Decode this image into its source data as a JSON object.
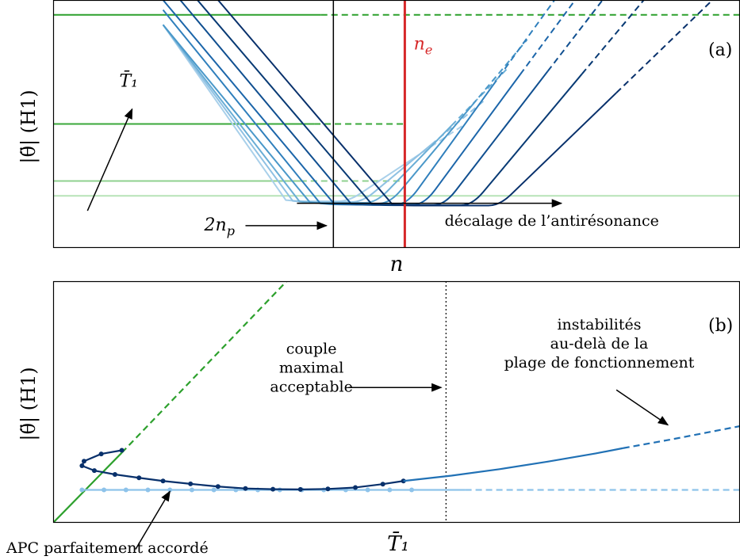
{
  "chart_data": [
    {
      "panel": "a",
      "type": "line",
      "panel_label": "(a)",
      "ylabel": "|θ̈| (H1)",
      "xlabel": "n",
      "grid": false,
      "axes_ticks": false,
      "x_range": [
        0,
        100
      ],
      "y_range": [
        0,
        100
      ],
      "colors": {
        "green_dark": "#2ca02c",
        "green_mid": "#4db34d",
        "green_light": "#8fd18f",
        "green_pale": "#b7e3b7",
        "red": "#d62728",
        "black": "#000000"
      },
      "vertical_lines": [
        {
          "name": "2n_p",
          "x": 40.8,
          "color": "#000000"
        },
        {
          "name": "n_e",
          "x": 51.2,
          "color": "#d62728"
        }
      ],
      "horizontal_lines": [
        {
          "y": 94,
          "x_solid_end": 39.0,
          "x_dashed_end": 100,
          "color": "#2ca02c"
        },
        {
          "y": 50,
          "x_solid_end": 38.0,
          "x_dashed_end": 51.0,
          "color": "#3aa83a"
        },
        {
          "y": 27,
          "x_solid_end": 36.0,
          "x_dashed_end": 51.0,
          "color": "#8fd18f"
        },
        {
          "y": 21,
          "x_solid_end": 100,
          "x_dashed_end": 100,
          "color": "#b7e3b7"
        }
      ],
      "v_curves": [
        {
          "x_start": 16.0,
          "y_start": 90,
          "x_min_start": 35.5,
          "x_min_end": 43.0,
          "y_min": 18.8,
          "x_solid_end": 52.5,
          "x_dashed_end": 60.0,
          "y_end": 50,
          "color": "#a9d0ea"
        },
        {
          "x_start": 16.0,
          "y_start": 90,
          "x_min_start": 36.5,
          "x_min_end": 45.0,
          "y_min": 18.5,
          "x_solid_end": 55.0,
          "x_dashed_end": 63.0,
          "y_end": 60,
          "color": "#8fc1e3"
        },
        {
          "x_start": 16.0,
          "y_start": 90,
          "x_min_start": 37.5,
          "x_min_end": 47.0,
          "y_min": 18.2,
          "x_solid_end": 58.0,
          "x_dashed_end": 66.0,
          "y_end": 72,
          "color": "#6aaed6"
        },
        {
          "x_start": 16.0,
          "y_start": 90,
          "x_min_start": 39.0,
          "x_min_end": 49.0,
          "y_min": 17.9,
          "x_solid_end": 61.0,
          "x_dashed_end": 69.0,
          "y_end": 84,
          "color": "#4a98c9"
        },
        {
          "x_start": 16.0,
          "y_start": 96,
          "x_min_start": 40.5,
          "x_min_end": 51.5,
          "y_min": 17.5,
          "x_solid_end": 64.0,
          "x_dashed_end": 73.0,
          "y_end": 100,
          "color": "#2f7fbc"
        },
        {
          "x_start": 16.0,
          "y_start": 100,
          "x_min_start": 42.5,
          "x_min_end": 54.0,
          "y_min": 17.4,
          "x_solid_end": 68.0,
          "x_dashed_end": 76.0,
          "y_end": 100,
          "color": "#1c66aa"
        },
        {
          "x_start": 18.5,
          "y_start": 100,
          "x_min_start": 45.0,
          "x_min_end": 57.0,
          "y_min": 17.3,
          "x_solid_end": 72.0,
          "x_dashed_end": 80.0,
          "y_end": 100,
          "color": "#104f90"
        },
        {
          "x_start": 21.0,
          "y_start": 100,
          "x_min_start": 48.0,
          "x_min_end": 61.0,
          "y_min": 17.2,
          "x_solid_end": 77.0,
          "x_dashed_end": 86.0,
          "y_end": 100,
          "color": "#083a74"
        },
        {
          "x_start": 24.0,
          "y_start": 100,
          "x_min_start": 51.0,
          "x_min_end": 65.0,
          "y_min": 17.1,
          "x_solid_end": 82.0,
          "x_dashed_end": 96.0,
          "y_end": 100,
          "color": "#08306b"
        }
      ],
      "annotations": [
        {
          "id": "T1",
          "text": "T̄₁",
          "label_x": 11.0,
          "label_y": 65,
          "arrow_from_x": 5.0,
          "arrow_from_y": 15,
          "arrow_to_x": 11.5,
          "arrow_to_y": 56
        },
        {
          "id": "2np",
          "text": "2n_p",
          "label_x": 22.0,
          "label_y": 7,
          "arrow_from_x": 28.0,
          "arrow_from_y": 9,
          "arrow_to_x": 39.8,
          "arrow_to_y": 9
        },
        {
          "id": "ne",
          "text": "n_e",
          "label_x": 52.5,
          "label_y": 80
        },
        {
          "id": "shift",
          "text": "décalage de l’antirésonance",
          "label_x": 57.0,
          "label_y": 9,
          "arrow_from_x": 35.5,
          "arrow_from_y": 18,
          "arrow_to_x": 74.0,
          "arrow_to_y": 18
        }
      ]
    },
    {
      "panel": "b",
      "type": "line",
      "panel_label": "(b)",
      "ylabel": "|θ̈| (H1)",
      "xlabel": "T̄₁",
      "grid": false,
      "axes_ticks": false,
      "x_range": [
        0,
        100
      ],
      "y_range": [
        0,
        100
      ],
      "vertical_lines": [
        {
          "name": "max_torque",
          "x": 57.2,
          "style": "dotted",
          "color": "#000000"
        }
      ],
      "series": [
        {
          "name": "",
          "color": "#2ca02c",
          "solid": {
            "x": [
              0,
              10.0
            ],
            "y": [
              0,
              29
            ]
          },
          "dashed": {
            "x": [
              10.0,
              34.0
            ],
            "y": [
              29,
              100
            ]
          }
        },
        {
          "name": "",
          "color": "#8ec3ea",
          "solid": {
            "x": [
              4.2,
              60.0
            ],
            "y": [
              13.6,
              13.6
            ]
          },
          "dashed": {
            "x": [
              60.0,
              100
            ],
            "y": [
              13.6,
              13.6
            ]
          },
          "markers": {
            "x": [
              4.2,
              7.4,
              10.6,
              13.8,
              17.0,
              20.2,
              23.4,
              26.6,
              29.8,
              33.0,
              36.2,
              39.4,
              42.6,
              45.8,
              49.0,
              52.2
            ],
            "y": [
              13.6,
              13.6,
              13.6,
              13.6,
              13.6,
              13.6,
              13.6,
              13.6,
              13.6,
              13.6,
              13.6,
              13.6,
              13.6,
              13.6,
              13.6,
              13.6
            ]
          }
        },
        {
          "name": "",
          "color": "#08306b",
          "solid": {
            "x": [
              10.0,
              7.0,
              4.5,
              4.2,
              6.0,
              9.0,
              12.5,
              16.0,
              20.0,
              24.0,
              28.0,
              32.0,
              36.0,
              40.0,
              44.0,
              48.0,
              51.0
            ],
            "y": [
              30.0,
              28.5,
              25.5,
              23.6,
              21.6,
              20.0,
              18.6,
              17.3,
              16.1,
              15.0,
              14.2,
              13.9,
              13.8,
              14.0,
              14.6,
              16.0,
              17.3
            ]
          },
          "markers": {
            "x": [
              10.0,
              7.0,
              4.5,
              4.2,
              6.0,
              9.0,
              12.5,
              16.0,
              20.0,
              24.0,
              28.0,
              32.0,
              36.0,
              40.0,
              44.0,
              48.0,
              51.0
            ],
            "y": [
              30.0,
              28.5,
              25.5,
              23.6,
              21.6,
              20.0,
              18.6,
              17.3,
              16.1,
              15.0,
              14.2,
              13.9,
              13.8,
              14.0,
              14.6,
              16.0,
              17.3
            ]
          }
        },
        {
          "name": "",
          "color": "#2171b5",
          "solid": {
            "x": [
              51.0,
              58.0,
              65.0,
              72.0,
              79.0,
              83.0
            ],
            "y": [
              17.3,
              19.5,
              22.2,
              25.3,
              28.7,
              30.9
            ]
          },
          "dashed": {
            "x": [
              83.0,
              90.0,
              100
            ],
            "y": [
              30.9,
              34.5,
              40.0
            ]
          }
        }
      ],
      "annotations": [
        {
          "id": "couple",
          "lines": [
            "couple",
            "maximal",
            "acceptable"
          ],
          "label_x": 37.6,
          "label_y": 70,
          "arrow_from_x": 43.0,
          "arrow_from_y": 56,
          "arrow_to_x": 56.5,
          "arrow_to_y": 56
        },
        {
          "id": "instab",
          "lines": [
            "instabilités",
            "au-delà de la",
            "plage de fonctionnement"
          ],
          "label_x": 79.5,
          "label_y": 80,
          "arrow_from_x": 82.0,
          "arrow_from_y": 55,
          "arrow_to_x": 89.5,
          "arrow_to_y": 40.5
        },
        {
          "id": "apc",
          "text": "APC parfaitement accordé",
          "label_x": -7.5,
          "label_y": -12,
          "arrow_from_x": 12.0,
          "arrow_from_y": -11,
          "arrow_to_x": 17.0,
          "arrow_to_y": 13.0
        }
      ]
    }
  ]
}
